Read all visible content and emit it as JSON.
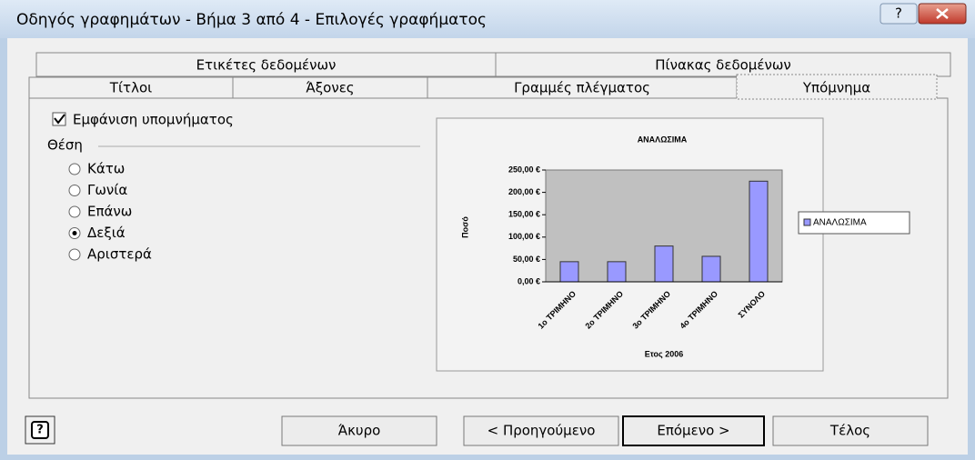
{
  "window": {
    "title": "Οδηγός γραφημάτων - Βήμα 3 από 4 - Επιλογές γραφήματος",
    "help": "?"
  },
  "tabs": {
    "row1": [
      "Ετικέτες δεδομένων",
      "Πίνακας δεδομένων"
    ],
    "row2": [
      "Τίτλοι",
      "Άξονες",
      "Γραμμές πλέγματος",
      "Υπόμνημα"
    ],
    "active": 3
  },
  "legend_options": {
    "show_legend": "Εμφάνιση υπομνήματος",
    "show_checked": true,
    "placement_label": "Θέση",
    "options": [
      "Κάτω",
      "Γωνία",
      "Επάνω",
      "Δεξιά",
      "Αριστερά"
    ],
    "selected": 3
  },
  "chart_data": {
    "type": "bar",
    "title": "ΑΝΑΛΩΣΙΜΑ",
    "y_label": "Ποσό",
    "x_label": "Ετος 2006",
    "categories": [
      "1ο ΤΡΙΜΗΝΟ",
      "2ο ΤΡΙΜΗΝΟ",
      "3ο ΤΡΙΜΗΝΟ",
      "4ο ΤΡΙΜΗΝΟ",
      "ΣΥΝΟΛΟ"
    ],
    "series": [
      {
        "name": "ΑΝΑΛΩΣΙΜΑ",
        "color": "#9999ff",
        "values": [
          45,
          45,
          80,
          57,
          225
        ]
      }
    ],
    "ylim": [
      0,
      250
    ],
    "yticks": [
      {
        "value": 0,
        "label": "0,00 €"
      },
      {
        "value": 50,
        "label": "50,00 €"
      },
      {
        "value": 100,
        "label": "100,00 €"
      },
      {
        "value": 150,
        "label": "150,00 €"
      },
      {
        "value": 200,
        "label": "200,00 €"
      },
      {
        "value": 250,
        "label": "250,00 €"
      }
    ],
    "legend": "right"
  },
  "footer": {
    "help": "?",
    "buttons": [
      "Άκυρο",
      "< Προηγούμενο",
      "Επόμενο >",
      "Τέλος"
    ]
  }
}
